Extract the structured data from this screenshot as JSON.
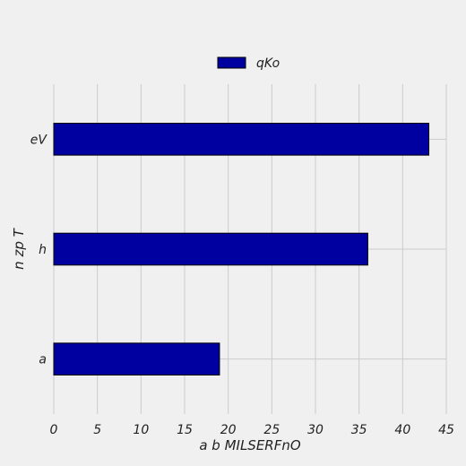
{
  "chart_data": {
    "type": "bar",
    "orientation": "horizontal",
    "categories": [
      "a",
      "h",
      "eV"
    ],
    "series": [
      {
        "name": "qKo",
        "values": [
          19,
          36,
          43
        ]
      }
    ],
    "title": "",
    "xlabel": "a b MILSERFnO",
    "ylabel": "n zp T",
    "xlim": [
      0,
      45
    ],
    "xticks": [
      0,
      5,
      10,
      15,
      20,
      25,
      30,
      35,
      40,
      45
    ],
    "grid": true,
    "legend": "top-center",
    "colors": {
      "bar_fill": "#0000a0",
      "bar_edge": "#000000",
      "background": "#f0f0f0",
      "grid": "#cbcbcb"
    }
  }
}
